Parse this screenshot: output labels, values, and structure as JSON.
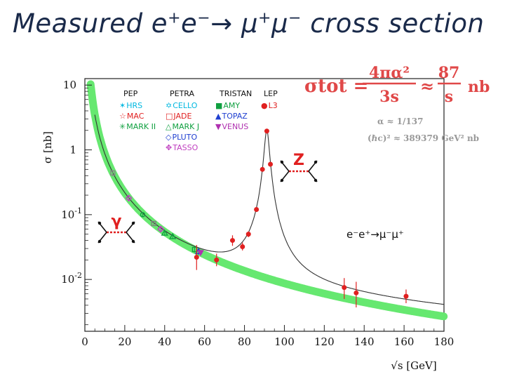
{
  "title": {
    "prefix": "Measured e",
    "sup1": "+",
    "mid1": "e",
    "sup2": "−",
    "arrow": "→ μ",
    "sup3": "+",
    "mid2": "μ",
    "sup4": "−",
    "suffix": " cross section"
  },
  "legend": {
    "headers": [
      "PEP",
      "PETRA",
      "TRISTAN",
      "LEP"
    ],
    "columns": [
      [
        {
          "sym": "✶",
          "label": "HRS",
          "color": "#00b8e0"
        },
        {
          "sym": "☆",
          "label": "MAC",
          "color": "#e02020"
        },
        {
          "sym": "✳",
          "label": "MARK II",
          "color": "#10a040"
        }
      ],
      [
        {
          "sym": "✡",
          "label": "CELLO",
          "color": "#00b8e0"
        },
        {
          "sym": "□",
          "label": "JADE",
          "color": "#e02020"
        },
        {
          "sym": "△",
          "label": "MARK J",
          "color": "#10a040"
        },
        {
          "sym": "◇",
          "label": "PLUTO",
          "color": "#2040d0"
        },
        {
          "sym": "✥",
          "label": "TASSO",
          "color": "#c040c0"
        }
      ],
      [
        {
          "sym": "■",
          "label": "AMY",
          "color": "#10a040"
        },
        {
          "sym": "▲",
          "label": "TOPAZ",
          "color": "#2040d0"
        },
        {
          "sym": "▼",
          "label": "VENUS",
          "color": "#b030b0"
        }
      ],
      [
        {
          "sym": "●",
          "label": "L3",
          "color": "#e02020"
        }
      ]
    ]
  },
  "annotations": {
    "z_label": "Z",
    "gamma_label": "γ",
    "process": "e⁻e⁺→μ⁻μ⁺",
    "formula_lhs": "σtot =",
    "formula_num1": "4πα²",
    "formula_den1": "3s",
    "formula_approx": "≈",
    "formula_num2": "87",
    "formula_den2": "s",
    "formula_unit": "nb",
    "alpha_value": "α ≈ 1/137",
    "hbar_value": "(ℏc)² ≈ 389379 GeV² nb"
  },
  "colors": {
    "qed_band": "#66e870",
    "theory_line": "#333333",
    "data_point": "#e02020",
    "annotation": "#e02020"
  },
  "chart_data": {
    "type": "scatter",
    "xlabel": "√s [GeV]",
    "ylabel": "σ [nb]",
    "xlim": [
      0,
      180
    ],
    "ylim_log10": [
      -2.8,
      1.1
    ],
    "y_scale": "log",
    "x_ticks": [
      0,
      20,
      40,
      60,
      80,
      100,
      120,
      140,
      160,
      180
    ],
    "y_ticks": [
      {
        "label": "10",
        "sup": "",
        "value": 10
      },
      {
        "label": "1",
        "sup": "",
        "value": 1
      },
      {
        "label": "10",
        "sup": "-1",
        "value": 0.1
      },
      {
        "label": "10",
        "sup": "-2",
        "value": 0.01
      }
    ],
    "legend_position": "top-left",
    "qed_curve": {
      "formula": "87/s",
      "x_start": 2.9,
      "x_end": 180
    },
    "z_peak": {
      "mass": 91.2,
      "width": 2.5,
      "peak": 2.0
    },
    "low_energy_points": [
      {
        "x": 14,
        "y": 0.44,
        "err": 0.05,
        "color": "#888888",
        "sym": "square"
      },
      {
        "x": 22,
        "y": 0.18,
        "err": 0.015,
        "color": "#c040c0",
        "sym": "diamond"
      },
      {
        "x": 29,
        "y": 0.1,
        "err": 0.008,
        "color": "#10a040",
        "sym": "star"
      },
      {
        "x": 34.5,
        "y": 0.073,
        "err": 0.005,
        "color": "#808080",
        "sym": "square"
      },
      {
        "x": 38,
        "y": 0.06,
        "err": 0.005,
        "color": "#c040c0",
        "sym": "diamond"
      },
      {
        "x": 40,
        "y": 0.052,
        "err": 0.004,
        "color": "#10a040",
        "sym": "triangle"
      },
      {
        "x": 44,
        "y": 0.046,
        "err": 0.004,
        "color": "#10a040",
        "sym": "triangle"
      },
      {
        "x": 55,
        "y": 0.029,
        "err": 0.003,
        "color": "#10a040",
        "sym": "square"
      },
      {
        "x": 57,
        "y": 0.027,
        "err": 0.003,
        "color": "#2040d0",
        "sym": "triangle"
      },
      {
        "x": 58,
        "y": 0.026,
        "err": 0.003,
        "color": "#b030b0",
        "sym": "triangle-down"
      }
    ],
    "l3_points": [
      {
        "x": 56,
        "y": 0.022,
        "err_hi": 0.012,
        "err_lo": 0.008
      },
      {
        "x": 66,
        "y": 0.02,
        "err_hi": 0.005,
        "err_lo": 0.004
      },
      {
        "x": 74,
        "y": 0.04,
        "err_hi": 0.008,
        "err_lo": 0.007
      },
      {
        "x": 79,
        "y": 0.032,
        "err_hi": 0.005,
        "err_lo": 0.004
      },
      {
        "x": 82,
        "y": 0.05,
        "err_hi": 0.005,
        "err_lo": 0.005
      },
      {
        "x": 86,
        "y": 0.12,
        "err_hi": 0.01,
        "err_lo": 0.01
      },
      {
        "x": 89,
        "y": 0.5,
        "err_hi": 0.03,
        "err_lo": 0.03
      },
      {
        "x": 91.2,
        "y": 1.95,
        "err_hi": 0.05,
        "err_lo": 0.05
      },
      {
        "x": 93,
        "y": 0.6,
        "err_hi": 0.03,
        "err_lo": 0.03
      },
      {
        "x": 130,
        "y": 0.0075,
        "err_hi": 0.003,
        "err_lo": 0.0025
      },
      {
        "x": 136,
        "y": 0.0062,
        "err_hi": 0.003,
        "err_lo": 0.0025
      },
      {
        "x": 161,
        "y": 0.0055,
        "err_hi": 0.0015,
        "err_lo": 0.0012
      }
    ]
  }
}
